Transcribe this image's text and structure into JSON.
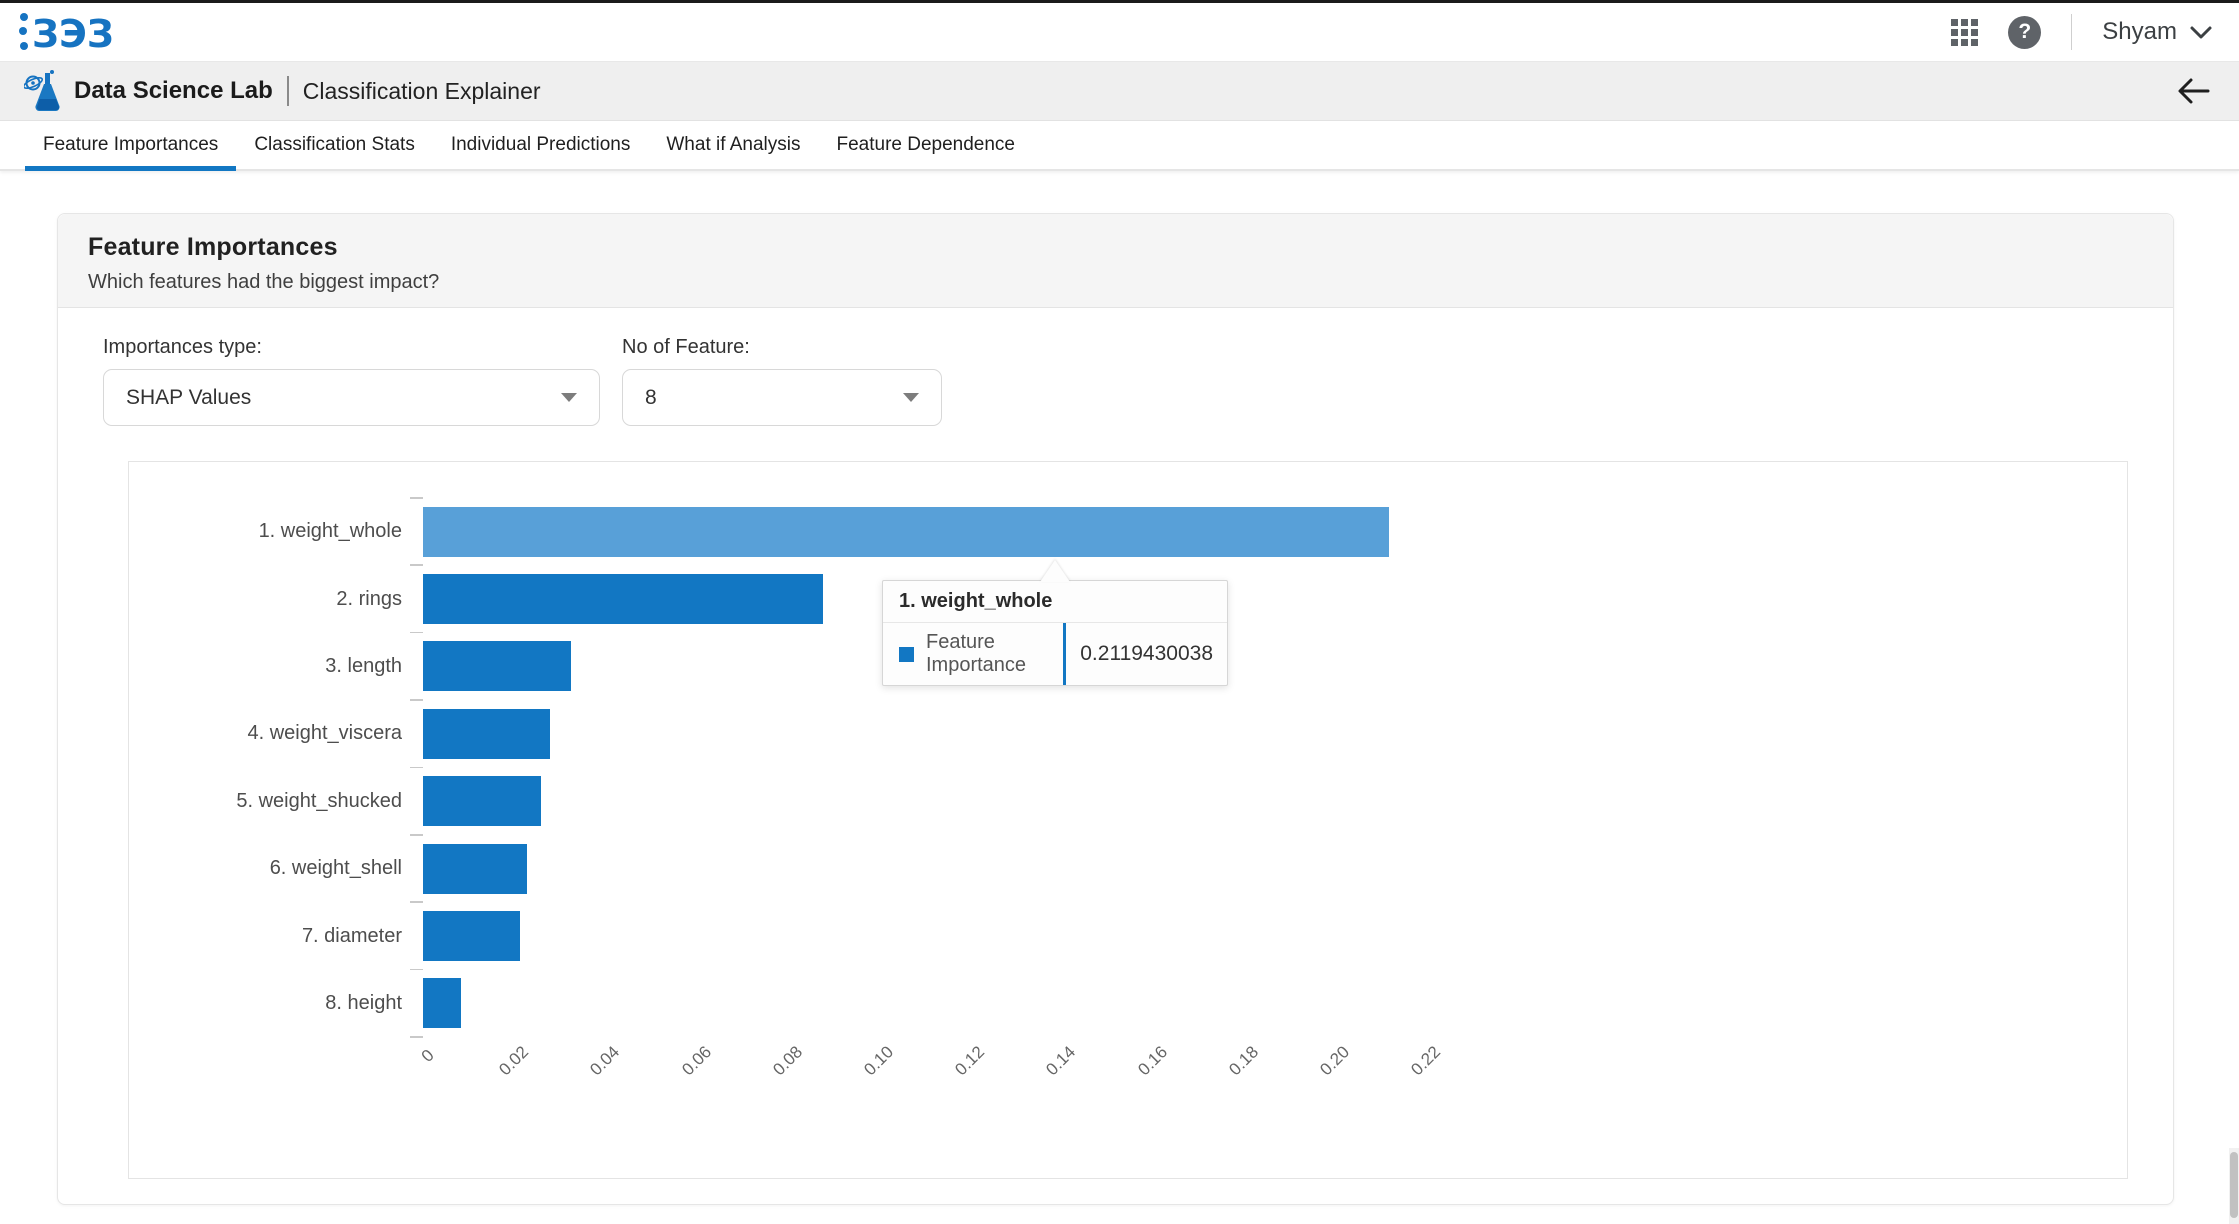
{
  "theme": {
    "accent": "#1277c3",
    "bar_color": "#1277c3",
    "bar_highlight_color": "#58a0d8"
  },
  "topbar": {
    "logo_glyphs": "ЗЭЗ",
    "brand": "BDB",
    "help_glyph": "?",
    "user_name": "Shyam"
  },
  "app_header": {
    "app_name": "Data Science Lab",
    "page_title": "Classification Explainer"
  },
  "tabs": [
    {
      "label": "Feature Importances",
      "active": true
    },
    {
      "label": "Classification Stats",
      "active": false
    },
    {
      "label": "Individual Predictions",
      "active": false
    },
    {
      "label": "What if Analysis",
      "active": false
    },
    {
      "label": "Feature Dependence",
      "active": false
    }
  ],
  "card": {
    "title": "Feature Importances",
    "subtitle": "Which features had the biggest impact?"
  },
  "controls": {
    "importances_type_label": "Importances type:",
    "importances_type_value": "SHAP Values",
    "feature_count_label": "No of Feature:",
    "feature_count_value": "8"
  },
  "tooltip": {
    "title": "1. weight_whole",
    "series": "Feature Importance",
    "value": "0.2119430038"
  },
  "chart_data": {
    "type": "bar",
    "orientation": "horizontal",
    "title": "",
    "xlabel": "",
    "ylabel": "",
    "categories": [
      "1. weight_whole",
      "2. rings",
      "3. length",
      "4. weight_viscera",
      "5. weight_shucked",
      "6. weight_shell",
      "7. diameter",
      "8. height"
    ],
    "series": [
      {
        "name": "Feature Importance",
        "values": [
          0.2119430038,
          0.0878,
          0.0325,
          0.0279,
          0.0259,
          0.0228,
          0.0213,
          0.0084
        ]
      }
    ],
    "x_ticks": [
      "0",
      "0.02",
      "0.04",
      "0.06",
      "0.08",
      "0.10",
      "0.12",
      "0.14",
      "0.16",
      "0.18",
      "0.20",
      "0.22"
    ],
    "xlim": [
      0,
      0.22
    ],
    "grid": false,
    "legend_position": "none",
    "highlighted_index": 0,
    "tick_label_rotation_deg": 45
  }
}
